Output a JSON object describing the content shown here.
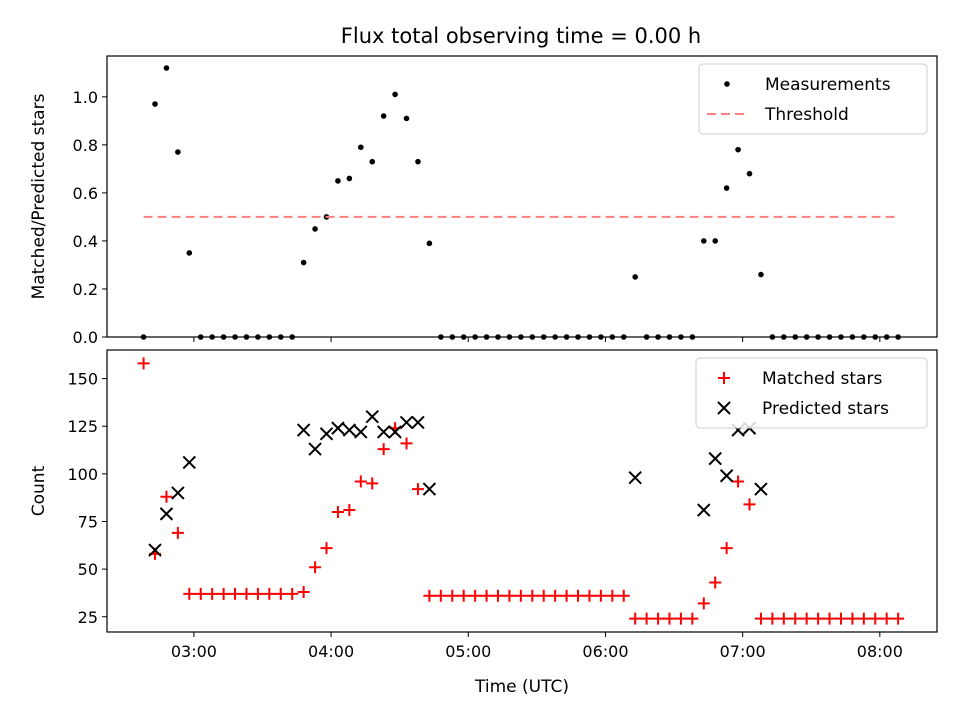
{
  "title": "Flux total observing time = 0.00 h",
  "chart_data": [
    {
      "type": "scatter",
      "ylabel": "Matched/Predicted stars",
      "xlabel": "",
      "xlim": [
        "02:22",
        "08:25"
      ],
      "ylim": [
        0,
        1.17
      ],
      "yticks": [
        "0.0",
        "0.2",
        "0.4",
        "0.6",
        "0.8",
        "1.0"
      ],
      "legend_position": "top-right",
      "series": [
        {
          "name": "Measurements",
          "style": "dot",
          "color": "#000000",
          "points": [
            [
              "02:38",
              0.0
            ],
            [
              "02:43",
              0.97
            ],
            [
              "02:48",
              1.12
            ],
            [
              "02:53",
              0.77
            ],
            [
              "02:58",
              0.35
            ],
            [
              "03:03",
              0.0
            ],
            [
              "03:08",
              0.0
            ],
            [
              "03:13",
              0.0
            ],
            [
              "03:18",
              0.0
            ],
            [
              "03:23",
              0.0
            ],
            [
              "03:28",
              0.0
            ],
            [
              "03:33",
              0.0
            ],
            [
              "03:38",
              0.0
            ],
            [
              "03:43",
              0.0
            ],
            [
              "03:48",
              0.31
            ],
            [
              "03:53",
              0.45
            ],
            [
              "03:58",
              0.5
            ],
            [
              "04:03",
              0.65
            ],
            [
              "04:08",
              0.66
            ],
            [
              "04:13",
              0.79
            ],
            [
              "04:18",
              0.73
            ],
            [
              "04:23",
              0.92
            ],
            [
              "04:28",
              1.01
            ],
            [
              "04:33",
              0.91
            ],
            [
              "04:38",
              0.73
            ],
            [
              "04:43",
              0.39
            ],
            [
              "04:48",
              0.0
            ],
            [
              "04:53",
              0.0
            ],
            [
              "04:58",
              0.0
            ],
            [
              "05:03",
              0.0
            ],
            [
              "05:08",
              0.0
            ],
            [
              "05:13",
              0.0
            ],
            [
              "05:18",
              0.0
            ],
            [
              "05:23",
              0.0
            ],
            [
              "05:28",
              0.0
            ],
            [
              "05:33",
              0.0
            ],
            [
              "05:38",
              0.0
            ],
            [
              "05:43",
              0.0
            ],
            [
              "05:48",
              0.0
            ],
            [
              "05:53",
              0.0
            ],
            [
              "05:58",
              0.0
            ],
            [
              "06:03",
              0.0
            ],
            [
              "06:08",
              0.0
            ],
            [
              "06:13",
              0.25
            ],
            [
              "06:18",
              0.0
            ],
            [
              "06:23",
              0.0
            ],
            [
              "06:28",
              0.0
            ],
            [
              "06:33",
              0.0
            ],
            [
              "06:38",
              0.0
            ],
            [
              "06:43",
              0.4
            ],
            [
              "06:48",
              0.4
            ],
            [
              "06:53",
              0.62
            ],
            [
              "06:58",
              0.78
            ],
            [
              "07:03",
              0.68
            ],
            [
              "07:08",
              0.26
            ],
            [
              "07:13",
              0.0
            ],
            [
              "07:18",
              0.0
            ],
            [
              "07:23",
              0.0
            ],
            [
              "07:28",
              0.0
            ],
            [
              "07:33",
              0.0
            ],
            [
              "07:38",
              0.0
            ],
            [
              "07:43",
              0.0
            ],
            [
              "07:48",
              0.0
            ],
            [
              "07:53",
              0.0
            ],
            [
              "07:58",
              0.0
            ],
            [
              "08:03",
              0.0
            ],
            [
              "08:08",
              0.0
            ]
          ]
        },
        {
          "name": "Threshold",
          "style": "dashed-line",
          "color": "#ff8080",
          "points": [
            [
              "02:38",
              0.5
            ],
            [
              "08:08",
              0.5
            ]
          ]
        }
      ]
    },
    {
      "type": "scatter",
      "ylabel": "Count",
      "xlabel": "Time (UTC)",
      "xlim": [
        "02:22",
        "08:25"
      ],
      "ylim": [
        17,
        165
      ],
      "yticks": [
        "25",
        "50",
        "75",
        "100",
        "125",
        "150"
      ],
      "xticks": [
        "03:00",
        "04:00",
        "05:00",
        "06:00",
        "07:00",
        "08:00"
      ],
      "legend_position": "top-right",
      "series": [
        {
          "name": "Matched stars",
          "style": "plus",
          "color": "#ff0000",
          "points": [
            [
              "02:38",
              158
            ],
            [
              "02:43",
              58
            ],
            [
              "02:48",
              88
            ],
            [
              "02:53",
              69
            ],
            [
              "02:58",
              37
            ],
            [
              "03:03",
              37
            ],
            [
              "03:08",
              37
            ],
            [
              "03:13",
              37
            ],
            [
              "03:18",
              37
            ],
            [
              "03:23",
              37
            ],
            [
              "03:28",
              37
            ],
            [
              "03:33",
              37
            ],
            [
              "03:38",
              37
            ],
            [
              "03:43",
              37
            ],
            [
              "03:48",
              38
            ],
            [
              "03:53",
              51
            ],
            [
              "03:58",
              61
            ],
            [
              "04:03",
              80
            ],
            [
              "04:08",
              81
            ],
            [
              "04:13",
              96
            ],
            [
              "04:18",
              95
            ],
            [
              "04:23",
              113
            ],
            [
              "04:28",
              124
            ],
            [
              "04:33",
              116
            ],
            [
              "04:38",
              92
            ],
            [
              "04:43",
              36
            ],
            [
              "04:48",
              36
            ],
            [
              "04:53",
              36
            ],
            [
              "04:58",
              36
            ],
            [
              "05:03",
              36
            ],
            [
              "05:08",
              36
            ],
            [
              "05:13",
              36
            ],
            [
              "05:18",
              36
            ],
            [
              "05:23",
              36
            ],
            [
              "05:28",
              36
            ],
            [
              "05:33",
              36
            ],
            [
              "05:38",
              36
            ],
            [
              "05:43",
              36
            ],
            [
              "05:48",
              36
            ],
            [
              "05:53",
              36
            ],
            [
              "05:58",
              36
            ],
            [
              "06:03",
              36
            ],
            [
              "06:08",
              36
            ],
            [
              "06:13",
              24
            ],
            [
              "06:18",
              24
            ],
            [
              "06:23",
              24
            ],
            [
              "06:28",
              24
            ],
            [
              "06:33",
              24
            ],
            [
              "06:38",
              24
            ],
            [
              "06:43",
              32
            ],
            [
              "06:48",
              43
            ],
            [
              "06:53",
              61
            ],
            [
              "06:58",
              96
            ],
            [
              "07:03",
              84
            ],
            [
              "07:08",
              24
            ],
            [
              "07:13",
              24
            ],
            [
              "07:18",
              24
            ],
            [
              "07:23",
              24
            ],
            [
              "07:28",
              24
            ],
            [
              "07:33",
              24
            ],
            [
              "07:38",
              24
            ],
            [
              "07:43",
              24
            ],
            [
              "07:48",
              24
            ],
            [
              "07:53",
              24
            ],
            [
              "07:58",
              24
            ],
            [
              "08:03",
              24
            ],
            [
              "08:08",
              24
            ]
          ]
        },
        {
          "name": "Predicted stars",
          "style": "x",
          "color": "#000000",
          "points": [
            [
              "02:43",
              60
            ],
            [
              "02:48",
              79
            ],
            [
              "02:53",
              90
            ],
            [
              "02:58",
              106
            ],
            [
              "03:48",
              123
            ],
            [
              "03:53",
              113
            ],
            [
              "03:58",
              121
            ],
            [
              "04:03",
              124
            ],
            [
              "04:08",
              123
            ],
            [
              "04:13",
              122
            ],
            [
              "04:18",
              130
            ],
            [
              "04:23",
              122
            ],
            [
              "04:28",
              122
            ],
            [
              "04:33",
              127
            ],
            [
              "04:38",
              127
            ],
            [
              "04:43",
              92
            ],
            [
              "06:13",
              98
            ],
            [
              "06:43",
              81
            ],
            [
              "06:48",
              108
            ],
            [
              "06:53",
              99
            ],
            [
              "06:58",
              123
            ],
            [
              "07:03",
              124
            ],
            [
              "07:08",
              92
            ]
          ]
        }
      ]
    }
  ]
}
